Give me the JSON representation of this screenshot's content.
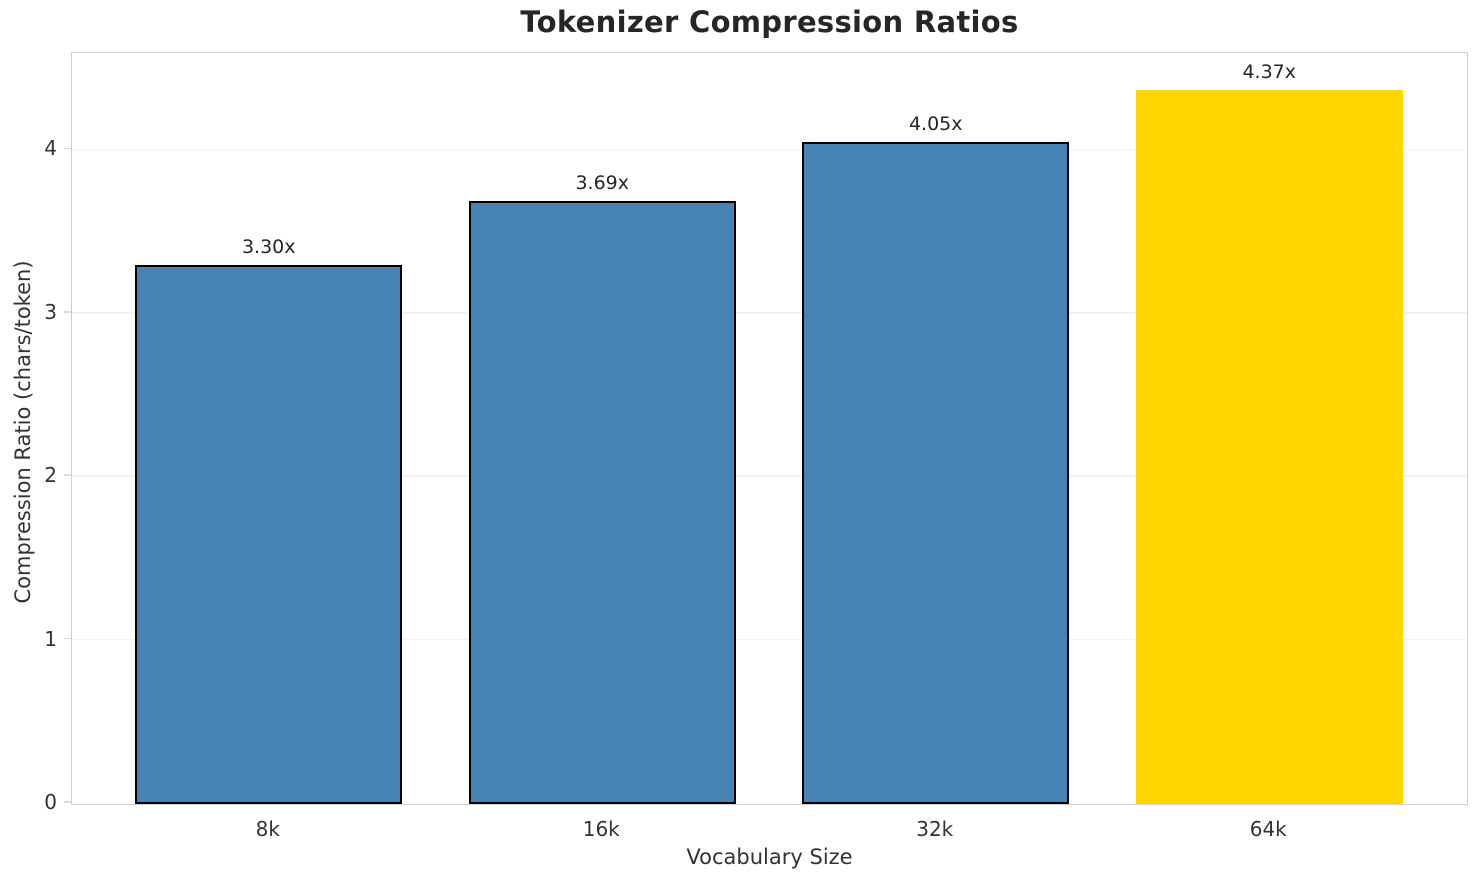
{
  "chart_data": {
    "type": "bar",
    "title": "Tokenizer Compression Ratios",
    "xlabel": "Vocabulary Size",
    "ylabel": "Compression Ratio (chars/token)",
    "categories": [
      "8k",
      "16k",
      "32k",
      "64k"
    ],
    "values": [
      3.3,
      3.69,
      4.05,
      4.37
    ],
    "bar_labels": [
      "3.30x",
      "3.69x",
      "4.05x",
      "4.37x"
    ],
    "bar_colors": [
      "#4682B4",
      "#4682B4",
      "#4682B4",
      "#FFD700"
    ],
    "bar_edge_colors": [
      "#000000",
      "#000000",
      "#000000",
      "none"
    ],
    "yticks": [
      0,
      1,
      2,
      3,
      4
    ],
    "ylim": [
      0,
      4.59
    ],
    "xlim": [
      -0.59,
      3.59
    ],
    "bar_width_units": 0.8,
    "grid": "horizontal-only",
    "legend": "none",
    "colors": {
      "bar": "#4682B4",
      "highlight": "#FFD700",
      "bar_edge": "#000000",
      "grid": "#f2f2f2",
      "spine": "#d0d0d0",
      "title_text": "#262626",
      "tick_text": "#333333"
    }
  }
}
